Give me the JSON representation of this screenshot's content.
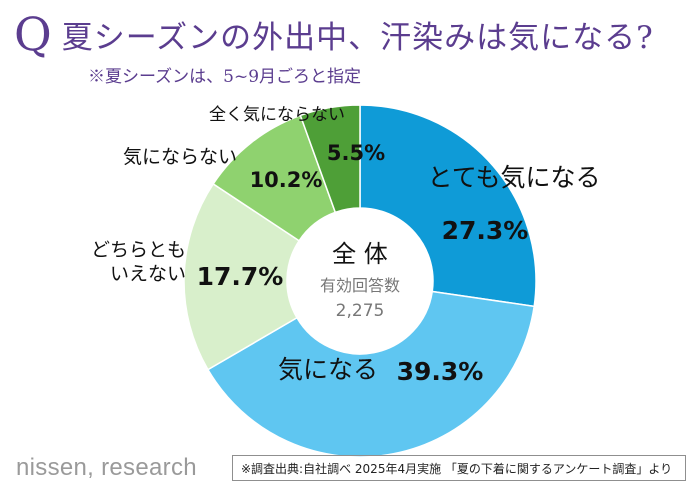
{
  "question": {
    "mark": "Q",
    "text": "夏シーズンの外出中、汗染みは気になる?",
    "note": "※夏シーズンは、5~9月ごろと指定"
  },
  "chart_data": {
    "type": "pie",
    "variant": "donut",
    "center": {
      "title": "全 体",
      "subtitle": "有効回答数",
      "n": "2,275"
    },
    "segments": [
      {
        "label": "とても気になる",
        "value": 27.3,
        "display": "27.3%",
        "color": "#0f9bd7"
      },
      {
        "label": "気になる",
        "value": 39.3,
        "display": "39.3%",
        "color": "#5fc6f1"
      },
      {
        "label": "どちらとも\nいえない",
        "value": 17.7,
        "display": "17.7%",
        "color": "#d8efcb"
      },
      {
        "label": "気にならない",
        "value": 10.2,
        "display": "10.2%",
        "color": "#8fd26f"
      },
      {
        "label": "全く気にならない",
        "value": 5.5,
        "display": "5.5%",
        "color": "#4e9f37"
      }
    ]
  },
  "footer": {
    "brand": "nissen, research",
    "source": "※調査出典:自社調べ 2025年4月実施 「夏の下着に関するアンケート調査」より"
  }
}
